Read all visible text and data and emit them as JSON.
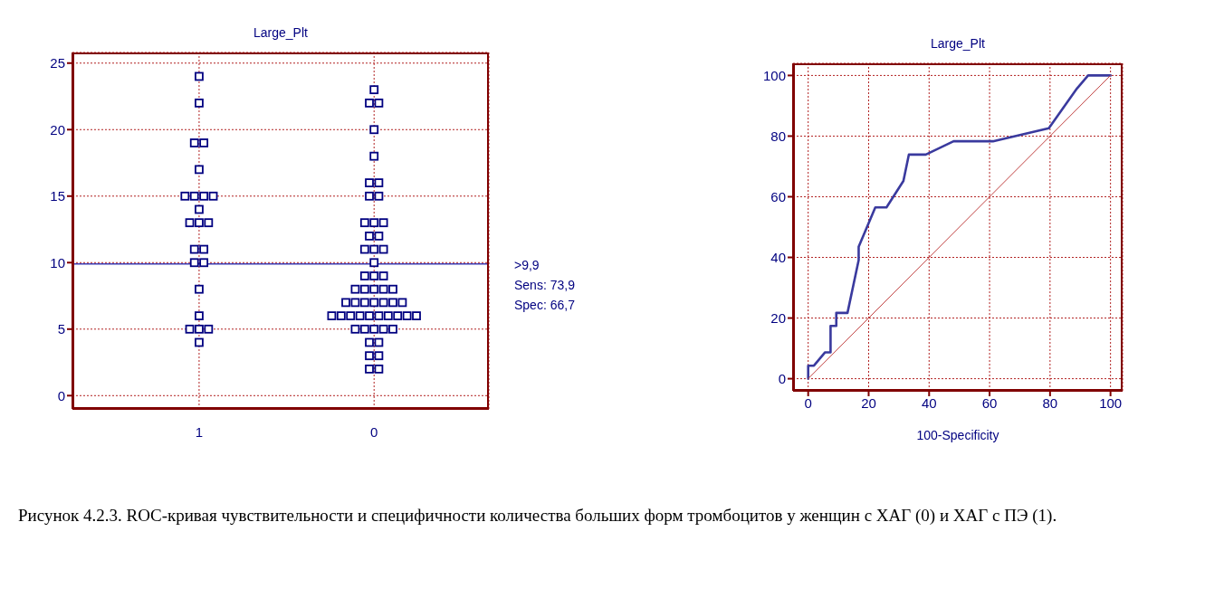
{
  "chart_data": [
    {
      "type": "scatter",
      "title": "Large_Plt",
      "categories": [
        "1",
        "0"
      ],
      "marker": "square",
      "ylim": [
        -1,
        25.8
      ],
      "yticks": [
        0,
        5,
        10,
        15,
        20,
        25
      ],
      "grid": true,
      "series": [
        {
          "type": "scatter",
          "color": "#000080",
          "x": [
            "1",
            "1",
            "1",
            "1",
            "1",
            "1",
            "1",
            "1",
            "1",
            "1",
            "1",
            "1",
            "1",
            "1",
            "1",
            "1",
            "1",
            "1",
            "1",
            "1",
            "1",
            "1",
            "1",
            "0",
            "0",
            "0",
            "0",
            "0",
            "0",
            "0",
            "0",
            "0",
            "0",
            "0",
            "0",
            "0",
            "0",
            "0",
            "0",
            "0",
            "0",
            "0",
            "0",
            "0",
            "0",
            "0",
            "0",
            "0",
            "0",
            "0",
            "0",
            "0",
            "0",
            "0",
            "0",
            "0",
            "0",
            "0",
            "0",
            "0",
            "0",
            "0",
            "0",
            "0",
            "0",
            "0",
            "0",
            "0",
            "0",
            "0",
            "0",
            "0",
            "0",
            "0",
            "0",
            "0",
            "0"
          ],
          "values": [
            24,
            22,
            19,
            19,
            17,
            15,
            15,
            15,
            15,
            14,
            13,
            13,
            13,
            11,
            11,
            10,
            10,
            8,
            6,
            5,
            5,
            5,
            4,
            23,
            22,
            22,
            20,
            18,
            16,
            16,
            15,
            15,
            13,
            13,
            13,
            12,
            12,
            11,
            11,
            11,
            10,
            9,
            9,
            9,
            8,
            8,
            8,
            8,
            8,
            7,
            7,
            7,
            7,
            7,
            7,
            7,
            6,
            6,
            6,
            6,
            6,
            6,
            6,
            6,
            6,
            6,
            5,
            5,
            5,
            5,
            5,
            4,
            4,
            3,
            3,
            2,
            2
          ]
        }
      ],
      "ref_lines": [
        {
          "axis": "y",
          "value": 9.9,
          "label": ">9,9",
          "color": "#3c3cb4"
        }
      ],
      "annotations": [
        "Sens: 73,9",
        "Spec: 66,7"
      ]
    },
    {
      "type": "line",
      "title": "Large_Plt",
      "xlabel": "100-Specificity",
      "xlim": [
        -5,
        104
      ],
      "ylim": [
        -4,
        104
      ],
      "xticks": [
        0,
        20,
        40,
        60,
        80,
        100
      ],
      "yticks": [
        0,
        20,
        40,
        60,
        80,
        100
      ],
      "grid": true,
      "marker": "none",
      "line_style": "solid",
      "series": [
        {
          "color": "#3a3a9e",
          "x": [
            0,
            0,
            1.9,
            5.6,
            7.4,
            7.4,
            9.3,
            9.3,
            13,
            16.7,
            16.7,
            22.2,
            25.9,
            31.5,
            33.3,
            38.9,
            48.1,
            61.1,
            79.6,
            88.9,
            92.6,
            100
          ],
          "values": [
            0,
            4.3,
            4.3,
            8.7,
            8.7,
            17.4,
            17.4,
            21.7,
            21.7,
            39.1,
            43.5,
            56.5,
            56.5,
            65.2,
            73.9,
            73.9,
            78.3,
            78.3,
            82.6,
            95.7,
            100,
            100
          ]
        },
        {
          "color": "#c04040",
          "x": [
            0,
            100
          ],
          "values": [
            0,
            100
          ]
        }
      ],
      "annotations": [
        "Рисунок 4.2.3. ROC-кривая чувствительности и специфичности количества больших форм тромбоцитов у женщин с ХАГ (0) и ХАГ с ПЭ (1)."
      ]
    }
  ]
}
